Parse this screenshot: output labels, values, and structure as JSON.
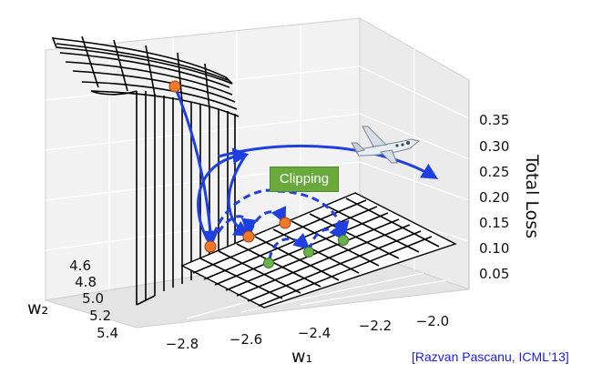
{
  "chart_data": {
    "type": "surface3d",
    "xlabel": "w₁",
    "ylabel": "w₂",
    "zlabel": "Total Loss",
    "x_ticks": [
      "−2.8",
      "−2.6",
      "−2.4",
      "−2.2",
      "−2.0"
    ],
    "y_ticks": [
      "4.6",
      "4.8",
      "5.0",
      "5.2",
      "5.4"
    ],
    "z_ticks": [
      "0.05",
      "0.10",
      "0.15",
      "0.20",
      "0.25",
      "0.30",
      "0.35"
    ],
    "annotation": "Clipping",
    "citation": "[Razvan Pascanu, ICML’13]",
    "colors": {
      "surface": "#000000",
      "unclipped_path": "#1f3fe0",
      "clipped_path": "#1f3fe0",
      "unclipped_points": "#f07a2a",
      "clipped_points": "#6ab04c",
      "clip_label_bg": "#6aaa3c"
    },
    "icons": [
      "airplane-icon"
    ]
  }
}
